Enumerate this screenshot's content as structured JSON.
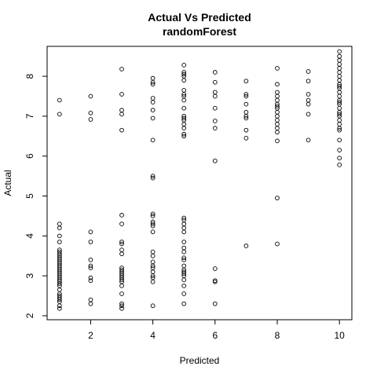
{
  "chart_data": {
    "type": "scatter",
    "title": "Actual Vs Predicted",
    "subtitle": "randomForest",
    "xlabel": "Predicted",
    "ylabel": "Actual",
    "xlim": [
      0.6,
      10.4
    ],
    "ylim": [
      1.9,
      8.75
    ],
    "xticks": [
      2,
      4,
      6,
      8,
      10
    ],
    "yticks": [
      2,
      3,
      4,
      5,
      6,
      7,
      8
    ],
    "grid": false,
    "marker": "open-circle",
    "series": [
      {
        "points": [
          [
            1,
            7.4
          ],
          [
            1,
            7.05
          ],
          [
            1,
            4.3
          ],
          [
            1,
            4.2
          ],
          [
            1,
            4.0
          ],
          [
            1,
            3.85
          ],
          [
            1,
            3.65
          ],
          [
            1,
            3.6
          ],
          [
            1,
            3.55
          ],
          [
            1,
            3.5
          ],
          [
            1,
            3.45
          ],
          [
            1,
            3.4
          ],
          [
            1,
            3.35
          ],
          [
            1,
            3.3
          ],
          [
            1,
            3.25
          ],
          [
            1,
            3.2
          ],
          [
            1,
            3.15
          ],
          [
            1,
            3.1
          ],
          [
            1,
            3.05
          ],
          [
            1,
            3.0
          ],
          [
            1,
            2.95
          ],
          [
            1,
            2.9
          ],
          [
            1,
            2.85
          ],
          [
            1,
            2.8
          ],
          [
            1,
            2.75
          ],
          [
            1,
            2.65
          ],
          [
            1,
            2.55
          ],
          [
            1,
            2.5
          ],
          [
            1,
            2.45
          ],
          [
            1,
            2.4
          ],
          [
            1,
            2.35
          ],
          [
            1,
            2.25
          ],
          [
            1,
            2.18
          ],
          [
            2,
            7.5
          ],
          [
            2,
            7.08
          ],
          [
            2,
            6.92
          ],
          [
            2,
            4.1
          ],
          [
            2,
            3.85
          ],
          [
            2,
            3.4
          ],
          [
            2,
            3.25
          ],
          [
            2,
            3.2
          ],
          [
            2,
            2.95
          ],
          [
            2,
            2.88
          ],
          [
            2,
            2.4
          ],
          [
            2,
            2.3
          ],
          [
            3,
            8.18
          ],
          [
            3,
            7.55
          ],
          [
            3,
            7.15
          ],
          [
            3,
            7.05
          ],
          [
            3,
            6.65
          ],
          [
            3,
            4.52
          ],
          [
            3,
            4.3
          ],
          [
            3,
            3.85
          ],
          [
            3,
            3.8
          ],
          [
            3,
            3.65
          ],
          [
            3,
            3.55
          ],
          [
            3,
            3.2
          ],
          [
            3,
            3.15
          ],
          [
            3,
            3.1
          ],
          [
            3,
            3.05
          ],
          [
            3,
            3.0
          ],
          [
            3,
            2.95
          ],
          [
            3,
            2.9
          ],
          [
            3,
            2.85
          ],
          [
            3,
            2.75
          ],
          [
            3,
            2.55
          ],
          [
            3,
            2.3
          ],
          [
            3,
            2.25
          ],
          [
            3,
            2.18
          ],
          [
            4,
            7.95
          ],
          [
            4,
            7.85
          ],
          [
            4,
            7.8
          ],
          [
            4,
            7.45
          ],
          [
            4,
            7.35
          ],
          [
            4,
            7.15
          ],
          [
            4,
            6.95
          ],
          [
            4,
            6.4
          ],
          [
            4,
            5.5
          ],
          [
            4,
            5.45
          ],
          [
            4,
            4.55
          ],
          [
            4,
            4.5
          ],
          [
            4,
            4.35
          ],
          [
            4,
            4.3
          ],
          [
            4,
            4.25
          ],
          [
            4,
            4.1
          ],
          [
            4,
            3.6
          ],
          [
            4,
            3.5
          ],
          [
            4,
            3.35
          ],
          [
            4,
            3.25
          ],
          [
            4,
            3.2
          ],
          [
            4,
            3.1
          ],
          [
            4,
            3.0
          ],
          [
            4,
            2.95
          ],
          [
            4,
            2.85
          ],
          [
            4,
            2.25
          ],
          [
            5,
            8.28
          ],
          [
            5,
            8.1
          ],
          [
            5,
            8.05
          ],
          [
            5,
            8.0
          ],
          [
            5,
            7.9
          ],
          [
            5,
            7.65
          ],
          [
            5,
            7.55
          ],
          [
            5,
            7.5
          ],
          [
            5,
            7.4
          ],
          [
            5,
            7.2
          ],
          [
            5,
            7.0
          ],
          [
            5,
            6.95
          ],
          [
            5,
            6.9
          ],
          [
            5,
            6.8
          ],
          [
            5,
            6.7
          ],
          [
            5,
            6.55
          ],
          [
            5,
            6.5
          ],
          [
            5,
            4.45
          ],
          [
            5,
            4.4
          ],
          [
            5,
            4.3
          ],
          [
            5,
            4.2
          ],
          [
            5,
            4.1
          ],
          [
            5,
            3.85
          ],
          [
            5,
            3.7
          ],
          [
            5,
            3.6
          ],
          [
            5,
            3.45
          ],
          [
            5,
            3.4
          ],
          [
            5,
            3.25
          ],
          [
            5,
            3.15
          ],
          [
            5,
            3.1
          ],
          [
            5,
            3.05
          ],
          [
            5,
            3.0
          ],
          [
            5,
            2.9
          ],
          [
            5,
            2.75
          ],
          [
            5,
            2.55
          ],
          [
            5,
            2.3
          ],
          [
            6,
            8.1
          ],
          [
            6,
            7.85
          ],
          [
            6,
            7.6
          ],
          [
            6,
            7.5
          ],
          [
            6,
            7.2
          ],
          [
            6,
            6.88
          ],
          [
            6,
            6.7
          ],
          [
            6,
            5.88
          ],
          [
            6,
            3.18
          ],
          [
            6,
            2.88
          ],
          [
            6,
            2.85
          ],
          [
            6,
            2.3
          ],
          [
            7,
            7.88
          ],
          [
            7,
            7.55
          ],
          [
            7,
            7.5
          ],
          [
            7,
            7.3
          ],
          [
            7,
            7.1
          ],
          [
            7,
            7.0
          ],
          [
            7,
            6.95
          ],
          [
            7,
            6.65
          ],
          [
            7,
            6.45
          ],
          [
            7,
            3.75
          ],
          [
            8,
            8.2
          ],
          [
            8,
            7.8
          ],
          [
            8,
            7.6
          ],
          [
            8,
            7.5
          ],
          [
            8,
            7.4
          ],
          [
            8,
            7.3
          ],
          [
            8,
            7.25
          ],
          [
            8,
            7.2
          ],
          [
            8,
            7.1
          ],
          [
            8,
            7.0
          ],
          [
            8,
            6.9
          ],
          [
            8,
            6.8
          ],
          [
            8,
            6.7
          ],
          [
            8,
            6.6
          ],
          [
            8,
            6.38
          ],
          [
            8,
            4.95
          ],
          [
            8,
            3.8
          ],
          [
            9,
            8.12
          ],
          [
            9,
            7.88
          ],
          [
            9,
            7.55
          ],
          [
            9,
            7.4
          ],
          [
            9,
            7.3
          ],
          [
            9,
            7.05
          ],
          [
            9,
            6.4
          ],
          [
            10,
            8.62
          ],
          [
            10,
            8.5
          ],
          [
            10,
            8.4
          ],
          [
            10,
            8.3
          ],
          [
            10,
            8.2
          ],
          [
            10,
            8.1
          ],
          [
            10,
            8.0
          ],
          [
            10,
            7.9
          ],
          [
            10,
            7.8
          ],
          [
            10,
            7.75
          ],
          [
            10,
            7.7
          ],
          [
            10,
            7.6
          ],
          [
            10,
            7.5
          ],
          [
            10,
            7.4
          ],
          [
            10,
            7.35
          ],
          [
            10,
            7.3
          ],
          [
            10,
            7.2
          ],
          [
            10,
            7.1
          ],
          [
            10,
            7.05
          ],
          [
            10,
            7.0
          ],
          [
            10,
            6.9
          ],
          [
            10,
            6.8
          ],
          [
            10,
            6.7
          ],
          [
            10,
            6.65
          ],
          [
            10,
            6.4
          ],
          [
            10,
            6.15
          ],
          [
            10,
            5.95
          ],
          [
            10,
            5.78
          ]
        ]
      }
    ]
  }
}
